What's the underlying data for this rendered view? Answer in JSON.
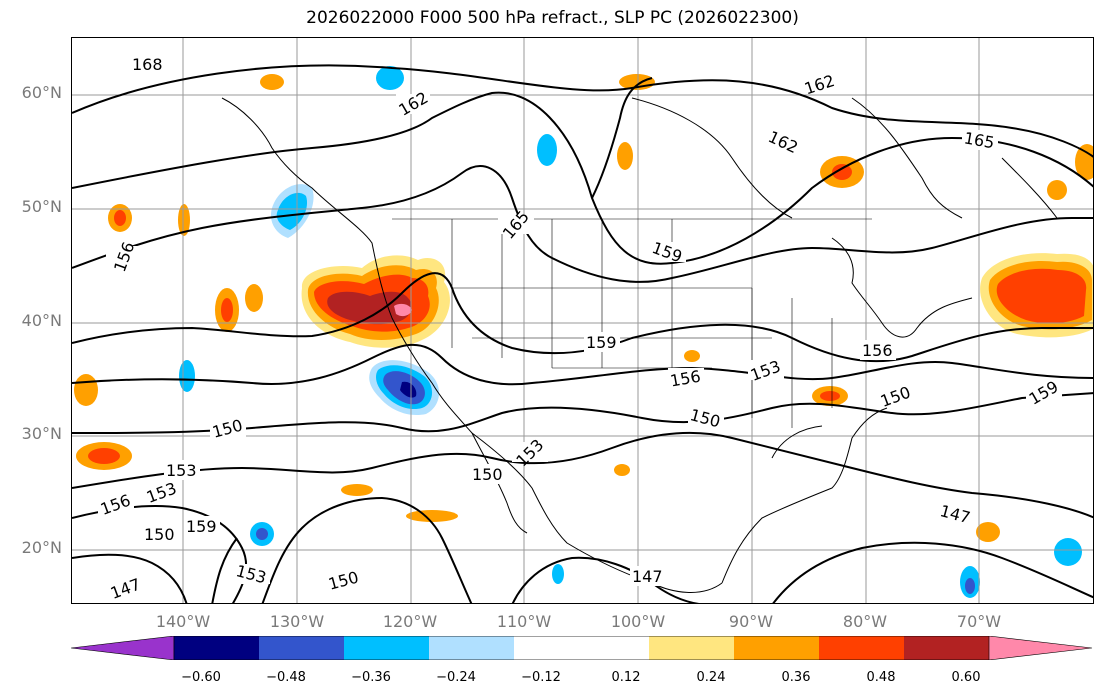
{
  "title": "2026022000 F000 500 hPa refract., SLP PC (2026022300)",
  "map": {
    "lat_labels": [
      "60°N",
      "50°N",
      "40°N",
      "30°N",
      "20°N"
    ],
    "lon_labels": [
      "140°W",
      "130°W",
      "120°W",
      "110°W",
      "100°W",
      "90°W",
      "80°W",
      "70°W"
    ],
    "contour_labels": [
      "168",
      "162",
      "162",
      "162",
      "165",
      "165",
      "159",
      "156",
      "159",
      "156",
      "153",
      "156",
      "150",
      "159",
      "150",
      "150",
      "153",
      "150",
      "153",
      "156",
      "153",
      "150",
      "159",
      "147",
      "153",
      "150",
      "147",
      "147"
    ]
  },
  "colorbar": {
    "ticks": [
      "−0.60",
      "−0.48",
      "−0.36",
      "−0.24",
      "−0.12",
      "0.12",
      "0.24",
      "0.36",
      "0.48",
      "0.60"
    ],
    "colors": [
      "#9933cc",
      "#000080",
      "#3355cc",
      "#00bfff",
      "#b0e0ff",
      "#ffffff",
      "#ffe680",
      "#ffa000",
      "#ff4000",
      "#b22222",
      "#ff88aa"
    ]
  }
}
